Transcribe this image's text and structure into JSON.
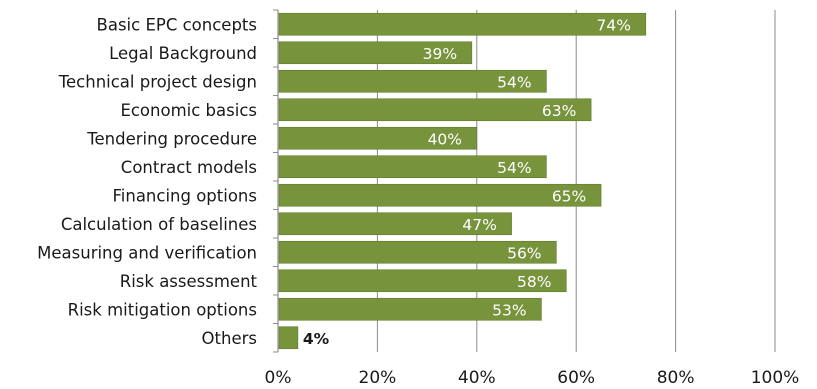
{
  "chart_data": {
    "type": "bar",
    "orientation": "horizontal",
    "categories": [
      "Basic EPC concepts",
      "Legal Background",
      "Technical project design",
      "Economic basics",
      "Tendering procedure",
      "Contract models",
      "Financing options",
      "Calculation of baselines",
      "Measuring and verification",
      "Risk assessment",
      "Risk mitigation options",
      "Others"
    ],
    "values": [
      74,
      39,
      54,
      63,
      40,
      54,
      65,
      47,
      56,
      58,
      53,
      4
    ],
    "data_labels": [
      "74%",
      "39%",
      "54%",
      "63%",
      "40%",
      "54%",
      "65%",
      "47%",
      "56%",
      "58%",
      "53%",
      "4%"
    ],
    "x_ticks": [
      "0%",
      "20%",
      "40%",
      "60%",
      "80%",
      "100%"
    ],
    "xlim": [
      0,
      100
    ],
    "title": "",
    "xlabel": "",
    "ylabel": "",
    "grid": "vertical",
    "legend": "none",
    "colors": {
      "bar": "#77933c",
      "bar_edge": "#5f7a2c",
      "grid": "#8c8c8c",
      "axis": "#8c8c8c",
      "text": "#1a1a1a",
      "label_inside": "#ffffff",
      "label_outside": "#1a1a1a"
    }
  }
}
